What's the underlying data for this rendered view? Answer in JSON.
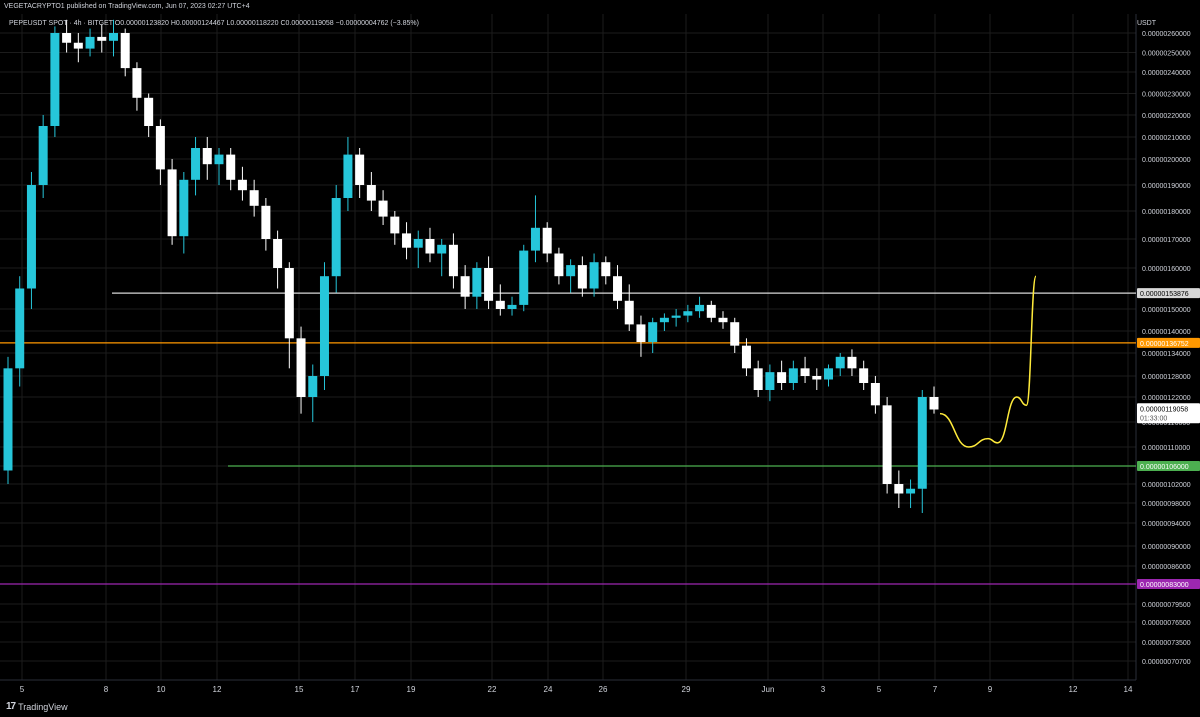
{
  "publisher": "VEGETACRYPTO1 published on TradingView.com, Jun 07, 2023 02:27 UTC+4",
  "symbol_line": "PEPEUSDT SPOT · 4h · BITGET  O0.00000123820  H0.00000124467  L0.00000118220  C0.00000119058  −0.00000004762 (−3.85%)",
  "unit": "USDT",
  "footer": {
    "logo": "17",
    "brand": "TradingView"
  },
  "colors": {
    "background": "#000000",
    "bull": "#26c6da",
    "bear": "#ffffff",
    "grid": "#1c1c1c",
    "axis_text": "#d1d4dc",
    "projection": "#ffeb3b"
  },
  "chart_data": {
    "type": "candlestick",
    "x_tick_labels": [
      "5",
      "8",
      "10",
      "12",
      "15",
      "17",
      "19",
      "22",
      "24",
      "26",
      "29",
      "Jun",
      "3",
      "5",
      "7",
      "9",
      "12",
      "14"
    ],
    "y_tick_labels": [
      "0.00000260000",
      "0.00000250000",
      "0.00000240000",
      "0.00000230000",
      "0.00000220000",
      "0.00000210000",
      "0.00000200000",
      "0.00000190000",
      "0.00000180000",
      "0.00000170000",
      "0.00000160000",
      "0.00000150000",
      "0.00000140000",
      "0.00000134000",
      "0.00000128000",
      "0.00000122000",
      "0.00000116000",
      "0.00000110000",
      "0.00000106000",
      "0.00000102000",
      "0.00000098000",
      "0.00000094000",
      "0.00000090000",
      "0.00000086000",
      "0.00000079500",
      "0.00000076500",
      "0.00000073500",
      "0.00000070700"
    ],
    "horizontal_levels": [
      {
        "label": "0.00000153876",
        "value": 1.53876e-06,
        "color": "#d8d8d8"
      },
      {
        "label": "0.00000136752",
        "value": 1.36752e-06,
        "color": "#ff9800"
      },
      {
        "label": "0.00000106000",
        "value": 1.06e-06,
        "color": "#4caf50"
      },
      {
        "label": "0.00000083000",
        "value": 8.3e-07,
        "color": "#9c27b0"
      }
    ],
    "last_price": {
      "value": 1.19058e-06,
      "label": "0.00000119058",
      "countdown": "01:33:00"
    },
    "ohlc_4h_approx": [
      [
        1.05,
        1.33,
        1.02,
        1.3
      ],
      [
        1.3,
        1.58,
        1.25,
        1.55
      ],
      [
        1.55,
        1.95,
        1.5,
        1.9
      ],
      [
        1.9,
        2.2,
        1.85,
        2.15
      ],
      [
        2.15,
        2.63,
        2.1,
        2.6
      ],
      [
        2.6,
        2.66,
        2.5,
        2.55
      ],
      [
        2.55,
        2.6,
        2.45,
        2.52
      ],
      [
        2.52,
        2.62,
        2.48,
        2.58
      ],
      [
        2.58,
        2.64,
        2.5,
        2.56
      ],
      [
        2.56,
        2.66,
        2.48,
        2.6
      ],
      [
        2.6,
        2.62,
        2.38,
        2.42
      ],
      [
        2.42,
        2.45,
        2.22,
        2.28
      ],
      [
        2.28,
        2.3,
        2.1,
        2.15
      ],
      [
        2.15,
        2.18,
        1.9,
        1.96
      ],
      [
        1.96,
        2.0,
        1.68,
        1.71
      ],
      [
        1.71,
        1.95,
        1.65,
        1.92
      ],
      [
        1.92,
        2.1,
        1.86,
        2.05
      ],
      [
        2.05,
        2.1,
        1.92,
        1.98
      ],
      [
        1.98,
        2.05,
        1.9,
        2.02
      ],
      [
        2.02,
        2.05,
        1.88,
        1.92
      ],
      [
        1.92,
        1.97,
        1.84,
        1.88
      ],
      [
        1.88,
        1.92,
        1.78,
        1.82
      ],
      [
        1.82,
        1.85,
        1.66,
        1.7
      ],
      [
        1.7,
        1.73,
        1.55,
        1.6
      ],
      [
        1.6,
        1.62,
        1.3,
        1.38
      ],
      [
        1.38,
        1.42,
        1.18,
        1.22
      ],
      [
        1.22,
        1.31,
        1.16,
        1.28
      ],
      [
        1.28,
        1.62,
        1.24,
        1.58
      ],
      [
        1.58,
        1.9,
        1.54,
        1.85
      ],
      [
        1.85,
        2.1,
        1.8,
        2.02
      ],
      [
        2.02,
        2.05,
        1.85,
        1.9
      ],
      [
        1.9,
        1.95,
        1.8,
        1.84
      ],
      [
        1.84,
        1.88,
        1.75,
        1.78
      ],
      [
        1.78,
        1.8,
        1.68,
        1.72
      ],
      [
        1.72,
        1.76,
        1.63,
        1.67
      ],
      [
        1.67,
        1.73,
        1.6,
        1.7
      ],
      [
        1.7,
        1.74,
        1.62,
        1.65
      ],
      [
        1.65,
        1.7,
        1.58,
        1.68
      ],
      [
        1.68,
        1.72,
        1.55,
        1.58
      ],
      [
        1.58,
        1.61,
        1.5,
        1.53
      ],
      [
        1.53,
        1.62,
        1.5,
        1.6
      ],
      [
        1.6,
        1.64,
        1.5,
        1.52
      ],
      [
        1.52,
        1.56,
        1.47,
        1.5
      ],
      [
        1.5,
        1.53,
        1.47,
        1.51
      ],
      [
        1.51,
        1.68,
        1.49,
        1.66
      ],
      [
        1.66,
        1.86,
        1.62,
        1.74
      ],
      [
        1.74,
        1.76,
        1.62,
        1.65
      ],
      [
        1.65,
        1.67,
        1.56,
        1.58
      ],
      [
        1.58,
        1.63,
        1.54,
        1.61
      ],
      [
        1.61,
        1.64,
        1.53,
        1.55
      ],
      [
        1.55,
        1.65,
        1.53,
        1.62
      ],
      [
        1.62,
        1.64,
        1.56,
        1.58
      ],
      [
        1.58,
        1.61,
        1.5,
        1.52
      ],
      [
        1.52,
        1.56,
        1.4,
        1.43
      ],
      [
        1.43,
        1.47,
        1.33,
        1.37
      ],
      [
        1.37,
        1.46,
        1.34,
        1.44
      ],
      [
        1.44,
        1.48,
        1.4,
        1.46
      ],
      [
        1.46,
        1.5,
        1.42,
        1.47
      ],
      [
        1.47,
        1.51,
        1.44,
        1.49
      ],
      [
        1.49,
        1.53,
        1.46,
        1.51
      ],
      [
        1.51,
        1.52,
        1.44,
        1.46
      ],
      [
        1.46,
        1.49,
        1.41,
        1.44
      ],
      [
        1.44,
        1.46,
        1.34,
        1.36
      ],
      [
        1.36,
        1.38,
        1.28,
        1.3
      ],
      [
        1.3,
        1.32,
        1.22,
        1.24
      ],
      [
        1.24,
        1.31,
        1.21,
        1.29
      ],
      [
        1.29,
        1.32,
        1.24,
        1.26
      ],
      [
        1.26,
        1.32,
        1.24,
        1.3
      ],
      [
        1.3,
        1.33,
        1.26,
        1.28
      ],
      [
        1.28,
        1.3,
        1.24,
        1.27
      ],
      [
        1.27,
        1.31,
        1.25,
        1.3
      ],
      [
        1.3,
        1.34,
        1.28,
        1.33
      ],
      [
        1.33,
        1.35,
        1.28,
        1.3
      ],
      [
        1.3,
        1.32,
        1.24,
        1.26
      ],
      [
        1.26,
        1.28,
        1.18,
        1.2
      ],
      [
        1.2,
        1.22,
        1.0,
        1.02
      ],
      [
        1.02,
        1.05,
        0.97,
        1.0
      ],
      [
        1.0,
        1.03,
        0.97,
        1.01
      ],
      [
        1.01,
        1.24,
        0.96,
        1.22
      ],
      [
        1.22,
        1.25,
        1.18,
        1.19
      ]
    ],
    "projection_points": [
      [
        0,
        1.18
      ],
      [
        3,
        1.1
      ],
      [
        5,
        1.12
      ],
      [
        6,
        1.11
      ],
      [
        8,
        1.22
      ],
      [
        9,
        1.2
      ],
      [
        10,
        1.58
      ]
    ]
  }
}
